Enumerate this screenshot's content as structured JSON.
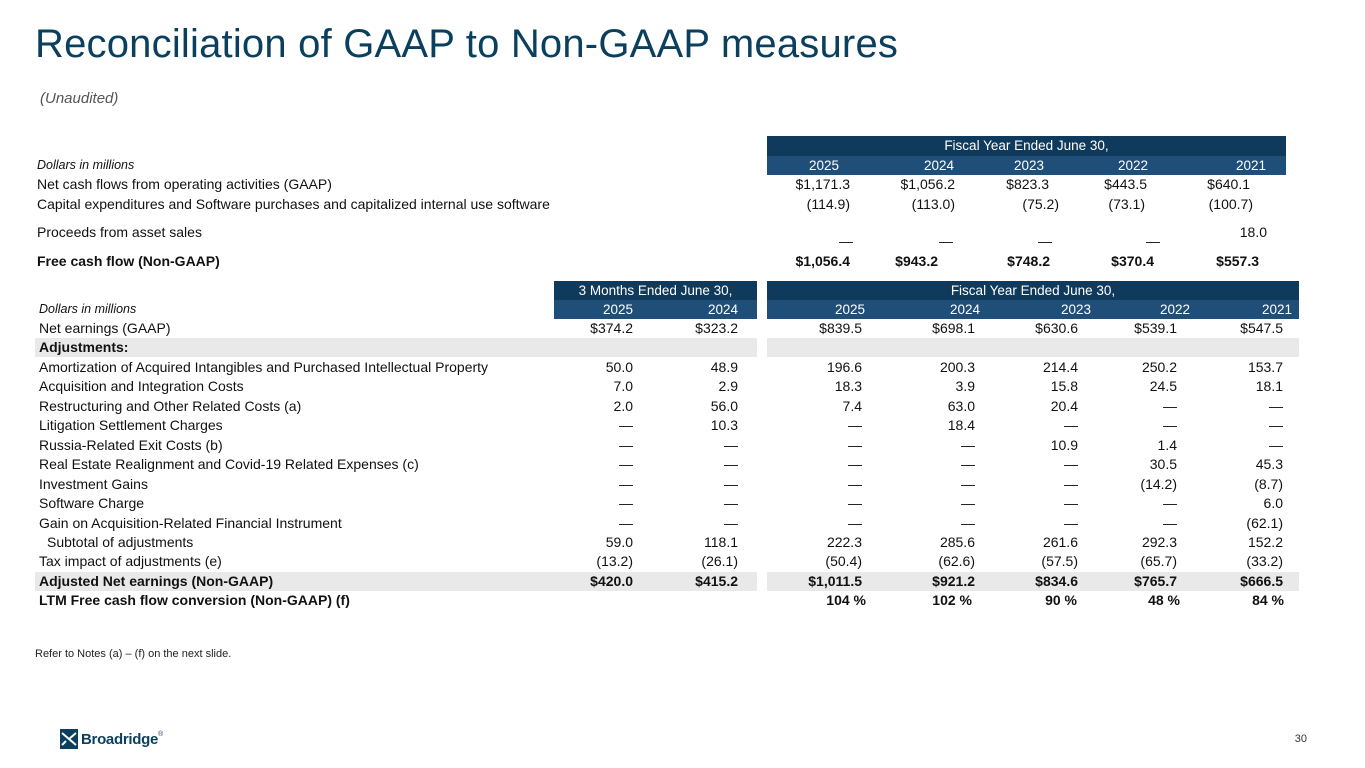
{
  "title": "Reconciliation of GAAP to Non-GAAP measures",
  "subtitle": "(Unaudited)",
  "table1": {
    "dollars_label": "Dollars in millions",
    "header": "Fiscal Year Ended June 30,",
    "years": [
      "2025",
      "2024",
      "2023",
      "2022",
      "2021"
    ],
    "rows": [
      {
        "label": "Net cash flows from operating activities (GAAP)",
        "values": [
          "$1,171.3",
          "$1,056.2",
          "$823.3",
          "$443.5",
          "$640.1"
        ]
      },
      {
        "label": "Capital expenditures and Software purchases and capitalized internal use software",
        "values": [
          "(114.9)",
          "(113.0)",
          "(75.2)",
          "(73.1)",
          "(100.7)"
        ]
      },
      {
        "label": "Proceeds from asset sales",
        "values": [
          "—",
          "—",
          "—",
          "—",
          "18.0"
        ]
      },
      {
        "label": "Free cash flow (Non-GAAP)",
        "values": [
          "$1,056.4",
          "$943.2",
          "$748.2",
          "$370.4",
          "$557.3"
        ]
      }
    ]
  },
  "table2": {
    "dollars_label": "Dollars in millions",
    "header_q": "3 Months Ended June 30,",
    "header_fy": "Fiscal Year Ended June 30,",
    "q_years": [
      "2025",
      "2024"
    ],
    "fy_years": [
      "2025",
      "2024",
      "2023",
      "2022",
      "2021"
    ],
    "rows": [
      {
        "label": "Net earnings (GAAP)",
        "q": [
          "$374.2",
          "$323.2"
        ],
        "fy": [
          "$839.5",
          "$698.1",
          "$630.6",
          "$539.1",
          "$547.5"
        ]
      },
      {
        "label": "Adjustments:",
        "q": [
          "",
          ""
        ],
        "fy": [
          "",
          "",
          "",
          "",
          ""
        ]
      },
      {
        "label": "Amortization of Acquired Intangibles and Purchased Intellectual Property",
        "q": [
          "50.0",
          "48.9"
        ],
        "fy": [
          "196.6",
          "200.3",
          "214.4",
          "250.2",
          "153.7"
        ]
      },
      {
        "label": "Acquisition and Integration Costs",
        "q": [
          "7.0",
          "2.9"
        ],
        "fy": [
          "18.3",
          "3.9",
          "15.8",
          "24.5",
          "18.1"
        ]
      },
      {
        "label": "Restructuring and Other Related Costs (a)",
        "q": [
          "2.0",
          "56.0"
        ],
        "fy": [
          "7.4",
          "63.0",
          "20.4",
          "—",
          "—"
        ]
      },
      {
        "label": "Litigation Settlement Charges",
        "q": [
          "—",
          "10.3"
        ],
        "fy": [
          "—",
          "18.4",
          "—",
          "—",
          "—"
        ]
      },
      {
        "label": "Russia-Related Exit Costs (b)",
        "q": [
          "—",
          "—"
        ],
        "fy": [
          "—",
          "—",
          "10.9",
          "1.4",
          "—"
        ]
      },
      {
        "label": "Real Estate Realignment and Covid-19 Related Expenses (c)",
        "q": [
          "—",
          "—"
        ],
        "fy": [
          "—",
          "—",
          "—",
          "30.5",
          "45.3"
        ]
      },
      {
        "label": "Investment Gains",
        "q": [
          "—",
          "—"
        ],
        "fy": [
          "—",
          "—",
          "—",
          "(14.2)",
          "(8.7)"
        ]
      },
      {
        "label": "Software Charge",
        "q": [
          "—",
          "—"
        ],
        "fy": [
          "—",
          "—",
          "—",
          "—",
          "6.0"
        ]
      },
      {
        "label": "Gain on Acquisition-Related Financial Instrument",
        "q": [
          "—",
          "—"
        ],
        "fy": [
          "—",
          "—",
          "—",
          "—",
          "(62.1)"
        ]
      },
      {
        "label": "Subtotal of adjustments",
        "q": [
          "59.0",
          "118.1"
        ],
        "fy": [
          "222.3",
          "285.6",
          "261.6",
          "292.3",
          "152.2"
        ]
      },
      {
        "label": "Tax impact of adjustments (e)",
        "q": [
          "(13.2)",
          "(26.1)"
        ],
        "fy": [
          "(50.4)",
          "(62.6)",
          "(57.5)",
          "(65.7)",
          "(33.2)"
        ]
      },
      {
        "label": "Adjusted Net earnings (Non-GAAP)",
        "q": [
          "$420.0",
          "$415.2"
        ],
        "fy": [
          "$1,011.5",
          "$921.2",
          "$834.6",
          "$765.7",
          "$666.5"
        ]
      },
      {
        "label": "LTM Free cash flow conversion (Non-GAAP) (f)",
        "q": [
          "",
          ""
        ],
        "fy": [
          "104 %",
          "102 %",
          "90 %",
          "48 %",
          "84 %"
        ]
      }
    ]
  },
  "footnote": "Refer to Notes (a) – (f) on the next slide.",
  "page_number": "30",
  "logo_text": "Broadridge",
  "logo_mark": "®",
  "colors": {
    "title": "#0b3f5e",
    "header_dark": "#0f3a5c",
    "header_light": "#1f4e79",
    "shade": "#e9e9e9"
  }
}
